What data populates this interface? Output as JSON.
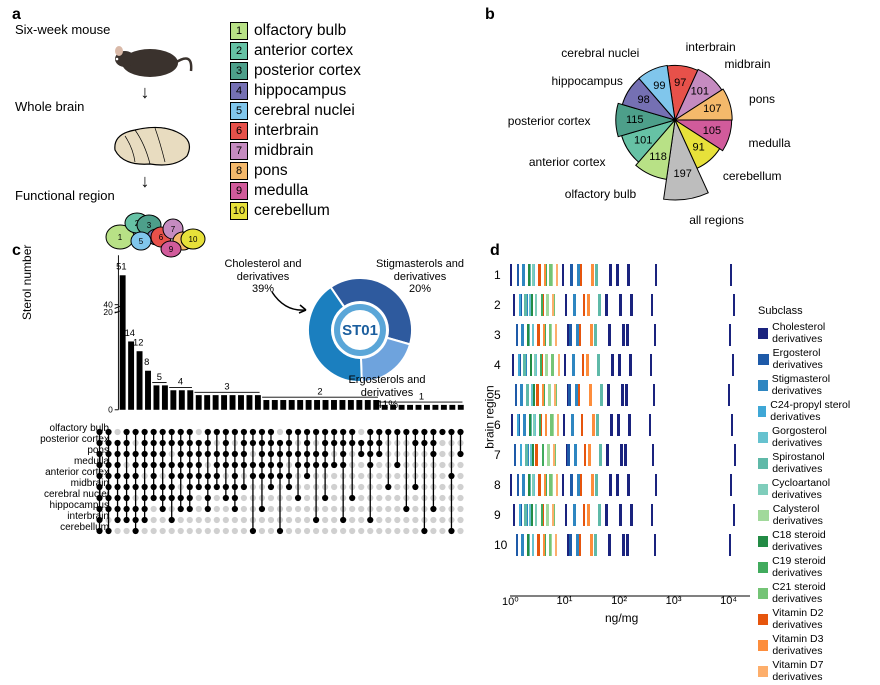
{
  "panel_labels": {
    "a": "a",
    "b": "b",
    "c": "c",
    "d": "d"
  },
  "panel_a": {
    "flow": [
      "Six-week mouse",
      "Whole brain",
      "Functional region"
    ],
    "regions": [
      {
        "n": "1",
        "label": "olfactory bulb",
        "color": "#b8e186"
      },
      {
        "n": "2",
        "label": "anterior cortex",
        "color": "#66c2a5"
      },
      {
        "n": "3",
        "label": "posterior cortex",
        "color": "#4d9f8a"
      },
      {
        "n": "4",
        "label": "hippocampus",
        "color": "#7570b3"
      },
      {
        "n": "5",
        "label": "cerebral nuclei",
        "color": "#80c6ec"
      },
      {
        "n": "6",
        "label": "interbrain",
        "color": "#e7514a"
      },
      {
        "n": "7",
        "label": "midbrain",
        "color": "#c58bc0"
      },
      {
        "n": "8",
        "label": "pons",
        "color": "#f4b96b"
      },
      {
        "n": "9",
        "label": "medulla",
        "color": "#d15b9b"
      },
      {
        "n": "10",
        "label": "cerebellum",
        "color": "#e7e13a"
      }
    ]
  },
  "panel_b": {
    "slices": [
      {
        "label": "interbrain",
        "value": 97,
        "color": "#e7514a"
      },
      {
        "label": "midbrain",
        "value": 101,
        "color": "#c58bc0"
      },
      {
        "label": "pons",
        "value": 107,
        "color": "#f4b96b"
      },
      {
        "label": "medulla",
        "value": 105,
        "color": "#d15b9b"
      },
      {
        "label": "cerebellum",
        "value": 91,
        "color": "#e7e13a"
      },
      {
        "label": "all regions",
        "value": 197,
        "color": "#bdbdbd"
      },
      {
        "label": "olfactory bulb",
        "value": 118,
        "color": "#b8e186"
      },
      {
        "label": "anterior cortex",
        "value": 101,
        "color": "#66c2a5"
      },
      {
        "label": "posterior cortex",
        "value": 115,
        "color": "#4d9f8a"
      },
      {
        "label": "hippocampus",
        "value": 98,
        "color": "#7570b3"
      },
      {
        "label": "cerebral nuclei",
        "value": 99,
        "color": "#80c6ec"
      }
    ],
    "max_radius_value": 197,
    "label_fontsize": 12
  },
  "panel_c": {
    "yaxis_label": "Sterol number",
    "yticks_lower": [
      0,
      20
    ],
    "yticks_upper": [
      40
    ],
    "break_from": 20,
    "break_to": 40,
    "ymax_upper": 55,
    "group_markers": [
      {
        "label": "51",
        "start": 0,
        "end": 0
      },
      {
        "label": "14",
        "start": 1,
        "end": 1
      },
      {
        "label": "12",
        "start": 2,
        "end": 2
      },
      {
        "label": "8",
        "start": 3,
        "end": 3
      },
      {
        "label": "5",
        "start": 4,
        "end": 5
      },
      {
        "label": "4",
        "start": 6,
        "end": 8
      },
      {
        "label": "3",
        "start": 9,
        "end": 16
      },
      {
        "label": "2",
        "start": 17,
        "end": 30
      },
      {
        "label": "1",
        "start": 31,
        "end": 40
      }
    ],
    "bars": [
      51,
      14,
      12,
      8,
      5,
      5,
      4,
      4,
      4,
      3,
      3,
      3,
      3,
      3,
      3,
      3,
      3,
      2,
      2,
      2,
      2,
      2,
      2,
      2,
      2,
      2,
      2,
      2,
      2,
      2,
      2,
      1,
      1,
      1,
      1,
      1,
      1,
      1,
      1,
      1,
      1
    ],
    "row_labels": [
      "olfactory bulb",
      "posterior cortex",
      "pons",
      "medulla",
      "anterior cortex",
      "midbrain",
      "cerebral nuclei",
      "hippocampus",
      "interbrain",
      "cerebellum"
    ],
    "donut": {
      "center_label": "ST01",
      "segments": [
        {
          "label": "Cholesterol and derivatives",
          "pct": 39,
          "color": "#2e5a9e"
        },
        {
          "label": "Stigmasterols and derivatives",
          "pct": 20,
          "color": "#6ea3dd"
        },
        {
          "label": "Ergosterols and derivatives",
          "pct": 41,
          "color": "#1b7fbf"
        }
      ]
    },
    "bar_color": "#000000",
    "dot_fill": "#000000",
    "dot_empty": "#d0d0d0"
  },
  "panel_d": {
    "yaxis_label": "brain region",
    "xaxis_label": "ng/mg",
    "xticks": [
      "10⁰",
      "10¹",
      "10²",
      "10³",
      "10⁴"
    ],
    "xrange_log": [
      0,
      4.4
    ],
    "rows": [
      "1",
      "2",
      "3",
      "4",
      "5",
      "6",
      "7",
      "8",
      "9",
      "10"
    ],
    "subclass_legend_title": "Subclass",
    "subclasses": [
      {
        "label": "Cholesterol derivatives",
        "color": "#1a237e"
      },
      {
        "label": "Ergosterol derivatives",
        "color": "#1e5aa8"
      },
      {
        "label": "Stigmasterol derivatives",
        "color": "#2e86c1"
      },
      {
        "label": "C24-propyl sterol derivatives",
        "color": "#3fa7d6"
      },
      {
        "label": "Gorgosterol derivatives",
        "color": "#66c2cf"
      },
      {
        "label": "Spirostanol  derivatives",
        "color": "#5fb9a8"
      },
      {
        "label": "Cycloartanol derivatives",
        "color": "#7fcdbb"
      },
      {
        "label": "Calysterol derivatives",
        "color": "#a1d99b"
      },
      {
        "label": "C18 steroid derivatives",
        "color": "#238b45"
      },
      {
        "label": "C19 steroid derivatives",
        "color": "#41ab5d"
      },
      {
        "label": "C21 steroid derivatives",
        "color": "#74c476"
      },
      {
        "label": "Vitamin D2 derivatives",
        "color": "#e6550d"
      },
      {
        "label": "Vitamin D3 derivatives",
        "color": "#fd8d3c"
      },
      {
        "label": "Vitamin D7 derivatives",
        "color": "#fdae6b"
      }
    ],
    "strip_pattern": [
      {
        "x": 0.05,
        "c": 0
      },
      {
        "x": 0.12,
        "c": 1
      },
      {
        "x": 0.18,
        "c": 3
      },
      {
        "x": 0.24,
        "c": 2
      },
      {
        "x": 0.3,
        "c": 5
      },
      {
        "x": 0.36,
        "c": 8
      },
      {
        "x": 0.4,
        "c": 4
      },
      {
        "x": 0.45,
        "c": 6
      },
      {
        "x": 0.52,
        "c": 11
      },
      {
        "x": 0.58,
        "c": 9
      },
      {
        "x": 0.64,
        "c": 12
      },
      {
        "x": 0.7,
        "c": 7
      },
      {
        "x": 0.76,
        "c": 10
      },
      {
        "x": 0.82,
        "c": 13
      },
      {
        "x": 1.0,
        "c": 0
      },
      {
        "x": 1.1,
        "c": 1
      },
      {
        "x": 1.18,
        "c": 2
      },
      {
        "x": 1.3,
        "c": 11
      },
      {
        "x": 1.45,
        "c": 12
      },
      {
        "x": 1.6,
        "c": 5
      },
      {
        "x": 1.8,
        "c": 0
      },
      {
        "x": 2.0,
        "c": 0
      },
      {
        "x": 2.15,
        "c": 0
      },
      {
        "x": 2.6,
        "c": 0
      },
      {
        "x": 4.05,
        "c": 0
      }
    ]
  }
}
